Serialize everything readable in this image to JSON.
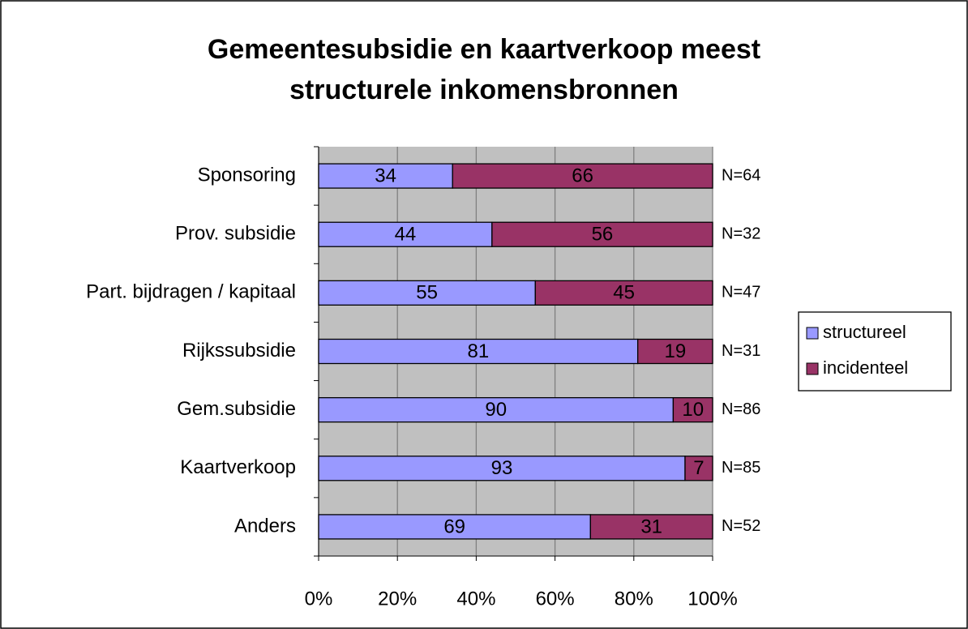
{
  "chart_data": {
    "type": "stacked_barh",
    "title": "Gemeentesubsidie en kaartverkoop meest structurele inkomensbronnen",
    "categories": [
      "Sponsoring",
      "Prov. subsidie",
      "Part. bijdragen / kapitaal",
      "Rijkssubsidie",
      "Gem.subsidie",
      "Kaartverkoop",
      "Anders"
    ],
    "series": [
      {
        "name": "structureel",
        "color": "#9999ff",
        "values": [
          34,
          44,
          55,
          81,
          90,
          93,
          69
        ]
      },
      {
        "name": "incidenteel",
        "color": "#993366",
        "values": [
          66,
          56,
          45,
          19,
          10,
          7,
          31
        ]
      }
    ],
    "annotations": [
      "N=64",
      "N=32",
      "N=47",
      "N=31",
      "N=86",
      "N=85",
      "N=52"
    ],
    "xlim": [
      0,
      100
    ],
    "xticks": [
      {
        "value": 0,
        "label": "0%"
      },
      {
        "value": 20,
        "label": "20%"
      },
      {
        "value": 40,
        "label": "40%"
      },
      {
        "value": 60,
        "label": "60%"
      },
      {
        "value": 80,
        "label": "80%"
      },
      {
        "value": 100,
        "label": "100%"
      }
    ],
    "grid": true,
    "legend": "right"
  }
}
